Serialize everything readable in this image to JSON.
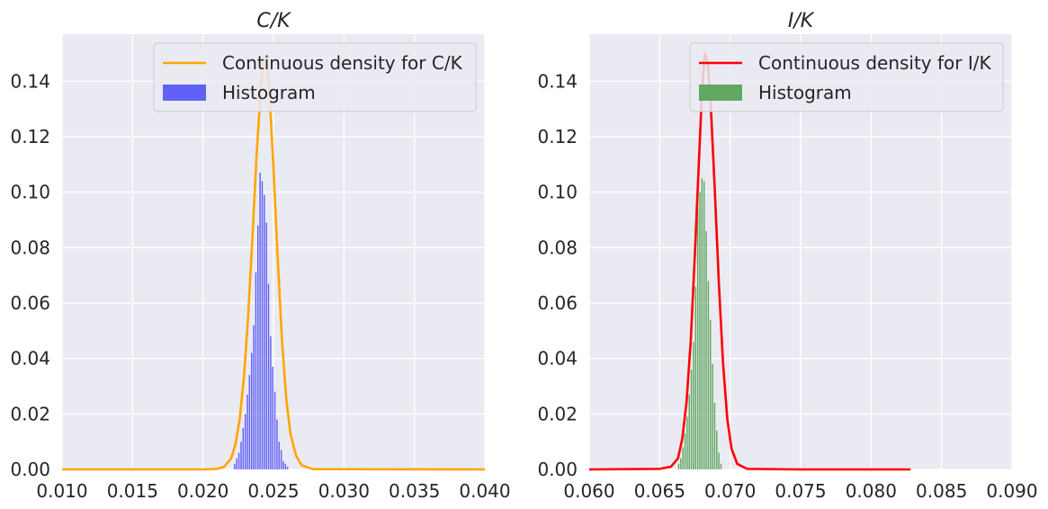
{
  "colors": {
    "background": "#eaeaf2",
    "grid": "#ffffff",
    "hist_left": "#6161f7",
    "hist_right": "#62a862",
    "line_left": "#ffa500",
    "line_right": "#ff0000"
  },
  "chart_data": [
    {
      "type": "bar",
      "title": "C/K",
      "xlim": [
        0.01,
        0.04
      ],
      "ylim": [
        0.0,
        0.157
      ],
      "grid": true,
      "legend_position": "top-right",
      "xticks": [
        {
          "value": 0.01,
          "label": "0.010"
        },
        {
          "value": 0.015,
          "label": "0.015"
        },
        {
          "value": 0.02,
          "label": "0.020"
        },
        {
          "value": 0.025,
          "label": "0.025"
        },
        {
          "value": 0.03,
          "label": "0.030"
        },
        {
          "value": 0.035,
          "label": "0.035"
        },
        {
          "value": 0.04,
          "label": "0.040"
        }
      ],
      "yticks": [
        {
          "value": 0.0,
          "label": "0.00"
        },
        {
          "value": 0.02,
          "label": "0.02"
        },
        {
          "value": 0.04,
          "label": "0.04"
        },
        {
          "value": 0.06,
          "label": "0.06"
        },
        {
          "value": 0.08,
          "label": "0.08"
        },
        {
          "value": 0.1,
          "label": "0.10"
        },
        {
          "value": 0.12,
          "label": "0.12"
        },
        {
          "value": 0.14,
          "label": "0.14"
        }
      ],
      "legend": [
        {
          "name": "Continuous density for C/K",
          "kind": "line"
        },
        {
          "name": "Histogram",
          "kind": "patch"
        }
      ],
      "histogram": {
        "bin_width": 0.00015,
        "bins": [
          {
            "x": 0.02225,
            "y": 0.002
          },
          {
            "x": 0.0224,
            "y": 0.004
          },
          {
            "x": 0.02255,
            "y": 0.006
          },
          {
            "x": 0.0227,
            "y": 0.01
          },
          {
            "x": 0.02285,
            "y": 0.015
          },
          {
            "x": 0.023,
            "y": 0.02
          },
          {
            "x": 0.02315,
            "y": 0.027
          },
          {
            "x": 0.0233,
            "y": 0.034
          },
          {
            "x": 0.02345,
            "y": 0.042
          },
          {
            "x": 0.0236,
            "y": 0.052
          },
          {
            "x": 0.02375,
            "y": 0.071
          },
          {
            "x": 0.0239,
            "y": 0.088
          },
          {
            "x": 0.02405,
            "y": 0.107
          },
          {
            "x": 0.0242,
            "y": 0.104
          },
          {
            "x": 0.02435,
            "y": 0.099
          },
          {
            "x": 0.0245,
            "y": 0.089
          },
          {
            "x": 0.02465,
            "y": 0.067
          },
          {
            "x": 0.0248,
            "y": 0.048
          },
          {
            "x": 0.02495,
            "y": 0.037
          },
          {
            "x": 0.0251,
            "y": 0.028
          },
          {
            "x": 0.02525,
            "y": 0.018
          },
          {
            "x": 0.0254,
            "y": 0.01
          },
          {
            "x": 0.02555,
            "y": 0.007
          },
          {
            "x": 0.0257,
            "y": 0.003
          },
          {
            "x": 0.02585,
            "y": 0.002
          },
          {
            "x": 0.026,
            "y": 0.001
          }
        ]
      },
      "density": {
        "points": [
          [
            0.01,
            0.0
          ],
          [
            0.02,
            0.0
          ],
          [
            0.021,
            0.0002
          ],
          [
            0.0215,
            0.001
          ],
          [
            0.022,
            0.004
          ],
          [
            0.0223,
            0.009
          ],
          [
            0.0226,
            0.018
          ],
          [
            0.0229,
            0.033
          ],
          [
            0.0232,
            0.055
          ],
          [
            0.0235,
            0.083
          ],
          [
            0.0238,
            0.113
          ],
          [
            0.0241,
            0.137
          ],
          [
            0.0243,
            0.148
          ],
          [
            0.0245,
            0.148
          ],
          [
            0.0247,
            0.137
          ],
          [
            0.025,
            0.109
          ],
          [
            0.0253,
            0.076
          ],
          [
            0.0256,
            0.047
          ],
          [
            0.0259,
            0.026
          ],
          [
            0.0262,
            0.013
          ],
          [
            0.0266,
            0.005
          ],
          [
            0.027,
            0.0015
          ],
          [
            0.0278,
            0.0001
          ],
          [
            0.04,
            0.0
          ]
        ]
      }
    },
    {
      "type": "bar",
      "title": "I/K",
      "xlim": [
        0.06,
        0.09
      ],
      "ylim": [
        0.0,
        0.157
      ],
      "grid": true,
      "legend_position": "top-right",
      "xticks": [
        {
          "value": 0.06,
          "label": "0.060"
        },
        {
          "value": 0.065,
          "label": "0.065"
        },
        {
          "value": 0.07,
          "label": "0.070"
        },
        {
          "value": 0.075,
          "label": "0.075"
        },
        {
          "value": 0.08,
          "label": "0.080"
        },
        {
          "value": 0.085,
          "label": "0.085"
        },
        {
          "value": 0.09,
          "label": "0.090"
        }
      ],
      "yticks": [
        {
          "value": 0.0,
          "label": "0.00"
        },
        {
          "value": 0.02,
          "label": "0.02"
        },
        {
          "value": 0.04,
          "label": "0.04"
        },
        {
          "value": 0.06,
          "label": "0.06"
        },
        {
          "value": 0.08,
          "label": "0.08"
        },
        {
          "value": 0.1,
          "label": "0.10"
        },
        {
          "value": 0.12,
          "label": "0.12"
        },
        {
          "value": 0.14,
          "label": "0.14"
        }
      ],
      "legend": [
        {
          "name": "Continuous density for I/K",
          "kind": "line"
        },
        {
          "name": "Histogram",
          "kind": "patch"
        }
      ],
      "histogram": {
        "bin_width": 0.00015,
        "bins": [
          {
            "x": 0.06635,
            "y": 0.002
          },
          {
            "x": 0.0665,
            "y": 0.004
          },
          {
            "x": 0.06665,
            "y": 0.008
          },
          {
            "x": 0.0668,
            "y": 0.013
          },
          {
            "x": 0.06695,
            "y": 0.019
          },
          {
            "x": 0.0671,
            "y": 0.027
          },
          {
            "x": 0.06725,
            "y": 0.036
          },
          {
            "x": 0.0674,
            "y": 0.046
          },
          {
            "x": 0.06755,
            "y": 0.066
          },
          {
            "x": 0.0677,
            "y": 0.094
          },
          {
            "x": 0.06785,
            "y": 0.1
          },
          {
            "x": 0.068,
            "y": 0.105
          },
          {
            "x": 0.06815,
            "y": 0.104
          },
          {
            "x": 0.0683,
            "y": 0.086
          },
          {
            "x": 0.06845,
            "y": 0.068
          },
          {
            "x": 0.0686,
            "y": 0.054
          },
          {
            "x": 0.06875,
            "y": 0.038
          },
          {
            "x": 0.0689,
            "y": 0.024
          },
          {
            "x": 0.06905,
            "y": 0.014
          },
          {
            "x": 0.0692,
            "y": 0.006
          },
          {
            "x": 0.06935,
            "y": 0.002
          }
        ]
      },
      "density": {
        "points": [
          [
            0.06,
            0.0
          ],
          [
            0.065,
            0.0002
          ],
          [
            0.0658,
            0.001
          ],
          [
            0.0663,
            0.004
          ],
          [
            0.0666,
            0.011
          ],
          [
            0.0669,
            0.024
          ],
          [
            0.0672,
            0.046
          ],
          [
            0.0675,
            0.078
          ],
          [
            0.0678,
            0.113
          ],
          [
            0.068,
            0.136
          ],
          [
            0.0682,
            0.15
          ],
          [
            0.0684,
            0.147
          ],
          [
            0.0686,
            0.134
          ],
          [
            0.0689,
            0.102
          ],
          [
            0.0692,
            0.067
          ],
          [
            0.0695,
            0.038
          ],
          [
            0.0698,
            0.018
          ],
          [
            0.0701,
            0.0075
          ],
          [
            0.0705,
            0.002
          ],
          [
            0.0712,
            0.0002
          ],
          [
            0.075,
            0.0
          ],
          [
            0.0828,
            0.0
          ]
        ]
      }
    }
  ]
}
